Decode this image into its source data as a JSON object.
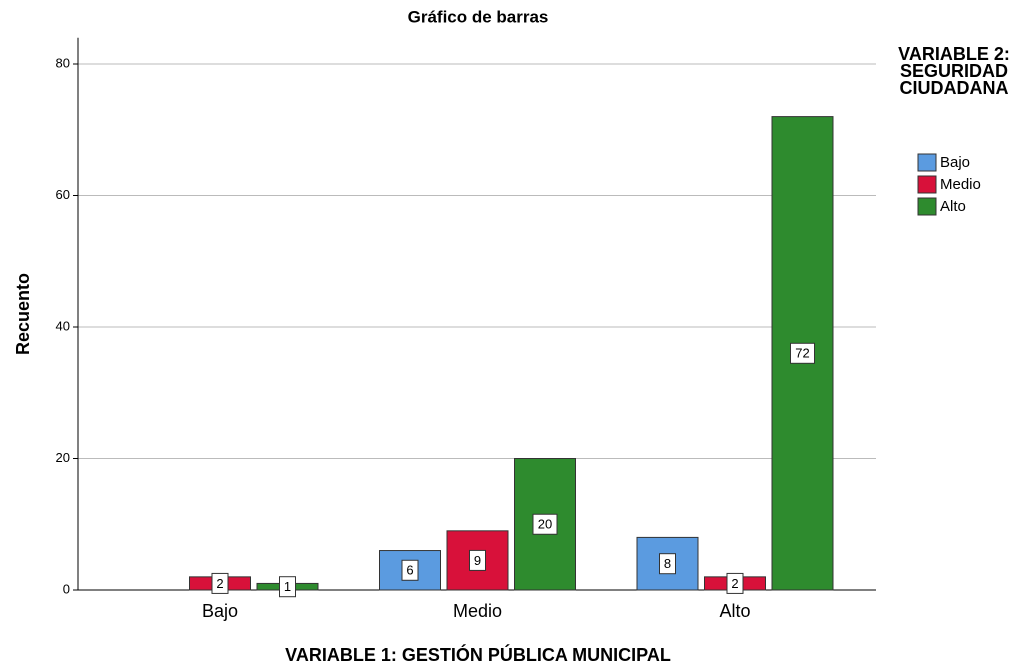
{
  "chart_data": {
    "type": "bar",
    "title": "Gráfico de barras",
    "x_label": "VARIABLE 1: GESTIÓN PÚBLICA MUNICIPAL",
    "y_label": "Recuento",
    "legend_title": "VARIABLE 2: SEGURIDAD CIUDADANA",
    "legend": "right",
    "categories": [
      "Bajo",
      "Medio",
      "Alto"
    ],
    "series": [
      {
        "name": "Bajo",
        "color": "#5b9be0",
        "values": [
          null,
          6,
          8
        ]
      },
      {
        "name": "Medio",
        "color": "#d8113a",
        "values": [
          2,
          9,
          2
        ]
      },
      {
        "name": "Alto",
        "color": "#2e8b2e",
        "values": [
          1,
          20,
          72
        ]
      }
    ],
    "ylim": [
      0,
      84
    ],
    "yticks": [
      0,
      20,
      40,
      60,
      80
    ],
    "grid": true
  }
}
